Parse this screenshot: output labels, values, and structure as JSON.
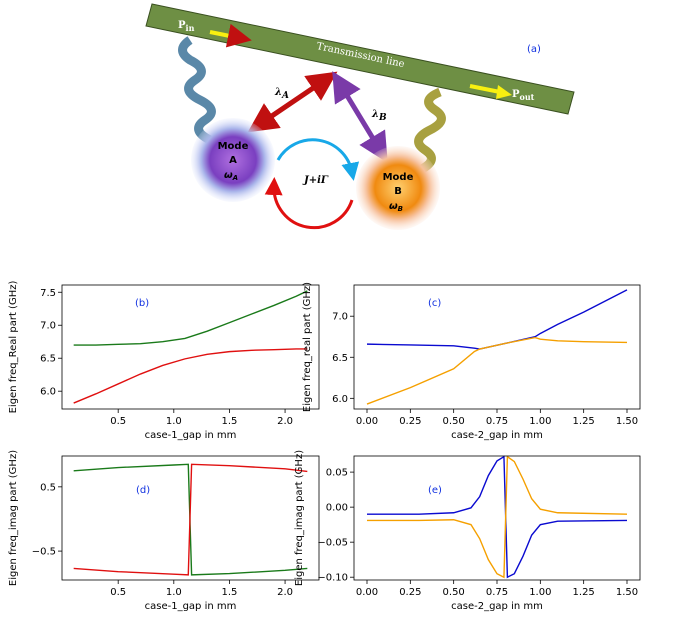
{
  "diagram": {
    "panel_label": "(a)",
    "line_label": "Transmission line",
    "p_in": {
      "main": "P",
      "sub": "in"
    },
    "p_out": {
      "main": "P",
      "sub": "out"
    },
    "lambda_a": {
      "main": "λ",
      "sub": "A"
    },
    "lambda_b": {
      "main": "λ",
      "sub": "B"
    },
    "coupling": "J+iΓ",
    "mode_a": {
      "title": "Mode",
      "name": "A",
      "freq": {
        "main": "ω",
        "sub": "A"
      }
    },
    "mode_b": {
      "title": "Mode",
      "name": "B",
      "freq": {
        "main": "ω",
        "sub": "B"
      }
    }
  },
  "chart_data": [
    {
      "type": "line",
      "annotation": "(b)",
      "xlabel": "case-1_gap in mm",
      "ylabel": "Eigen freq_Real part (GHz)",
      "x": [
        0.1,
        0.3,
        0.5,
        0.7,
        0.9,
        1.1,
        1.3,
        1.5,
        1.7,
        1.9,
        2.1,
        2.2
      ],
      "series": [
        {
          "color": "#1a7a1a",
          "values": [
            6.7,
            6.7,
            6.71,
            6.72,
            6.75,
            6.8,
            6.91,
            7.04,
            7.17,
            7.3,
            7.44,
            7.52
          ]
        },
        {
          "color": "#e01010",
          "values": [
            5.82,
            5.96,
            6.11,
            6.26,
            6.39,
            6.49,
            6.56,
            6.6,
            6.62,
            6.63,
            6.64,
            6.64
          ]
        }
      ],
      "xlim": [
        -0.005,
        2.305
      ],
      "xticks": [
        0.5,
        {
          "value": 1,
          "label": "1.0"
        },
        1.5,
        {
          "value": 2,
          "label": "2.0"
        }
      ],
      "ylim": [
        5.73,
        7.61
      ],
      "yticks": [
        {
          "value": 6,
          "label": "6.0"
        },
        6.5,
        {
          "value": 7,
          "label": "7.0"
        },
        7.5
      ]
    },
    {
      "type": "line",
      "annotation": "(c)",
      "xlabel": "case-2_gap in mm",
      "ylabel": "Eigen freq_real part (GHz)",
      "x": [
        0,
        0.25,
        0.5,
        0.62,
        0.65,
        0.8,
        0.97,
        1.0,
        1.1,
        1.25,
        1.5
      ],
      "series": [
        {
          "color": "#0a0ad0",
          "values": [
            6.66,
            6.65,
            6.64,
            6.61,
            6.6,
            6.67,
            6.75,
            6.79,
            6.9,
            7.05,
            7.32
          ]
        },
        {
          "color": "#f5a000",
          "values": [
            5.93,
            6.13,
            6.36,
            6.57,
            6.6,
            6.67,
            6.74,
            6.72,
            6.7,
            6.69,
            6.68
          ]
        }
      ],
      "xlim": [
        -0.075,
        1.575
      ],
      "xticks": [
        {
          "value": 0,
          "label": "0.00"
        },
        0.25,
        {
          "value": 0.5,
          "label": "0.50"
        },
        0.75,
        {
          "value": 1,
          "label": "1.00"
        },
        1.25,
        {
          "value": 1.5,
          "label": "1.50"
        }
      ],
      "ylim": [
        5.87,
        7.38
      ],
      "yticks": [
        {
          "value": 6,
          "label": "6.0"
        },
        6.5,
        {
          "value": 7,
          "label": "7.0"
        }
      ]
    },
    {
      "type": "line",
      "annotation": "(d)",
      "xlabel": "case-1_gap in mm",
      "ylabel": "Eigen freq_imag part (GHz)",
      "x": [
        0.1,
        0.5,
        1.0,
        1.13,
        1.16,
        1.5,
        2.0,
        2.2
      ],
      "series": [
        {
          "color": "#1a7a1a",
          "values": [
            0.75,
            0.8,
            0.84,
            0.85,
            -0.87,
            -0.85,
            -0.8,
            -0.77
          ]
        },
        {
          "color": "#e01010",
          "values": [
            -0.77,
            -0.82,
            -0.86,
            -0.87,
            0.85,
            0.83,
            0.78,
            0.74
          ]
        }
      ],
      "xlim": [
        -0.005,
        2.305
      ],
      "xticks": [
        0.5,
        {
          "value": 1,
          "label": "1.0"
        },
        1.5,
        {
          "value": 2,
          "label": "2.0"
        }
      ],
      "ylim": [
        -0.95,
        0.98
      ],
      "yticks": [
        {
          "value": -0.5,
          "label": "−0.5"
        },
        0.5
      ]
    },
    {
      "type": "line",
      "annotation": "(e)",
      "xlabel": "case-2_gap in mm",
      "ylabel": "Eigen freq_imag part (GHz)",
      "x": [
        0,
        0.3,
        0.5,
        0.6,
        0.65,
        0.7,
        0.75,
        0.79,
        0.81,
        0.85,
        0.9,
        0.95,
        1.0,
        1.1,
        1.5
      ],
      "series": [
        {
          "color": "#0a0ad0",
          "values": [
            -0.01,
            -0.01,
            -0.008,
            -0.001,
            0.015,
            0.045,
            0.066,
            0.072,
            -0.1,
            -0.095,
            -0.07,
            -0.04,
            -0.025,
            -0.02,
            -0.019
          ]
        },
        {
          "color": "#f5a000",
          "values": [
            -0.019,
            -0.019,
            -0.018,
            -0.025,
            -0.045,
            -0.075,
            -0.095,
            -0.1,
            0.072,
            0.065,
            0.04,
            0.012,
            -0.003,
            -0.008,
            -0.01
          ]
        }
      ],
      "xlim": [
        -0.075,
        1.575
      ],
      "xticks": [
        {
          "value": 0,
          "label": "0.00"
        },
        0.25,
        {
          "value": 0.5,
          "label": "0.50"
        },
        0.75,
        {
          "value": 1,
          "label": "1.00"
        },
        1.25,
        {
          "value": 1.5,
          "label": "1.50"
        }
      ],
      "ylim": [
        -0.104,
        0.073
      ],
      "yticks": [
        {
          "value": -0.1,
          "label": "−0.10"
        },
        {
          "value": -0.05,
          "label": "−0.05"
        },
        {
          "value": 0,
          "label": "0.00"
        },
        0.05
      ]
    }
  ]
}
